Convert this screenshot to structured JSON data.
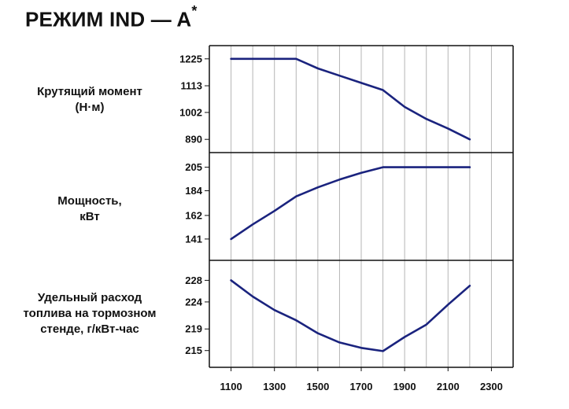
{
  "title": "РЕЖИМ IND — A",
  "title_mark": "*",
  "panels": {
    "torque_label": "Крутящий момент\n(Н·м)",
    "power_label": "Мощность,\nкВт",
    "fuel_label": "Удельный расход\nтоплива на тормозном\nстенде, г/кВт-час"
  },
  "chart_data": [
    {
      "type": "line",
      "ylabel": "Крутящий момент (Н·м)",
      "x": [
        1100,
        1200,
        1300,
        1400,
        1500,
        1600,
        1700,
        1800,
        1900,
        2000,
        2100,
        2200
      ],
      "values": [
        1225,
        1225,
        1225,
        1225,
        1185,
        1155,
        1125,
        1095,
        1025,
        975,
        935,
        890
      ],
      "yticks": [
        1225,
        1113,
        1002,
        890
      ],
      "ylim": [
        835,
        1280
      ],
      "color": "#1a237e"
    },
    {
      "type": "line",
      "ylabel": "Мощность, кВт",
      "x": [
        1100,
        1200,
        1300,
        1400,
        1500,
        1600,
        1700,
        1800,
        1900,
        2000,
        2100,
        2200
      ],
      "values": [
        141,
        154,
        166,
        179,
        187,
        194,
        200,
        205,
        205,
        205,
        205,
        205
      ],
      "yticks": [
        205,
        184,
        162,
        141
      ],
      "ylim": [
        122,
        218
      ],
      "color": "#1a237e"
    },
    {
      "type": "line",
      "ylabel": "Удельный расход топлива на тормозном стенде, г/кВт-час",
      "x": [
        1100,
        1200,
        1300,
        1400,
        1500,
        1600,
        1700,
        1800,
        1900,
        2000,
        2100,
        2200
      ],
      "values": [
        228,
        225,
        222.5,
        220.6,
        218.2,
        216.5,
        215.5,
        214.9,
        217.5,
        219.8,
        223.5,
        227
      ],
      "yticks": [
        228,
        224,
        219,
        215
      ],
      "ylim": [
        211.9,
        231.7
      ],
      "color": "#1a237e"
    }
  ],
  "xaxis": {
    "ticks": [
      1100,
      1300,
      1500,
      1700,
      1900,
      2100,
      2300
    ],
    "xlim": [
      1000,
      2400
    ],
    "grid_positions": [
      1000,
      1100,
      1200,
      1300,
      1400,
      1500,
      1600,
      1700,
      1800,
      1900,
      2000,
      2100,
      2200,
      2300,
      2400
    ]
  },
  "colors": {
    "line": "#1a237e",
    "grid": "#b5b5b5",
    "frame": "#111111"
  }
}
